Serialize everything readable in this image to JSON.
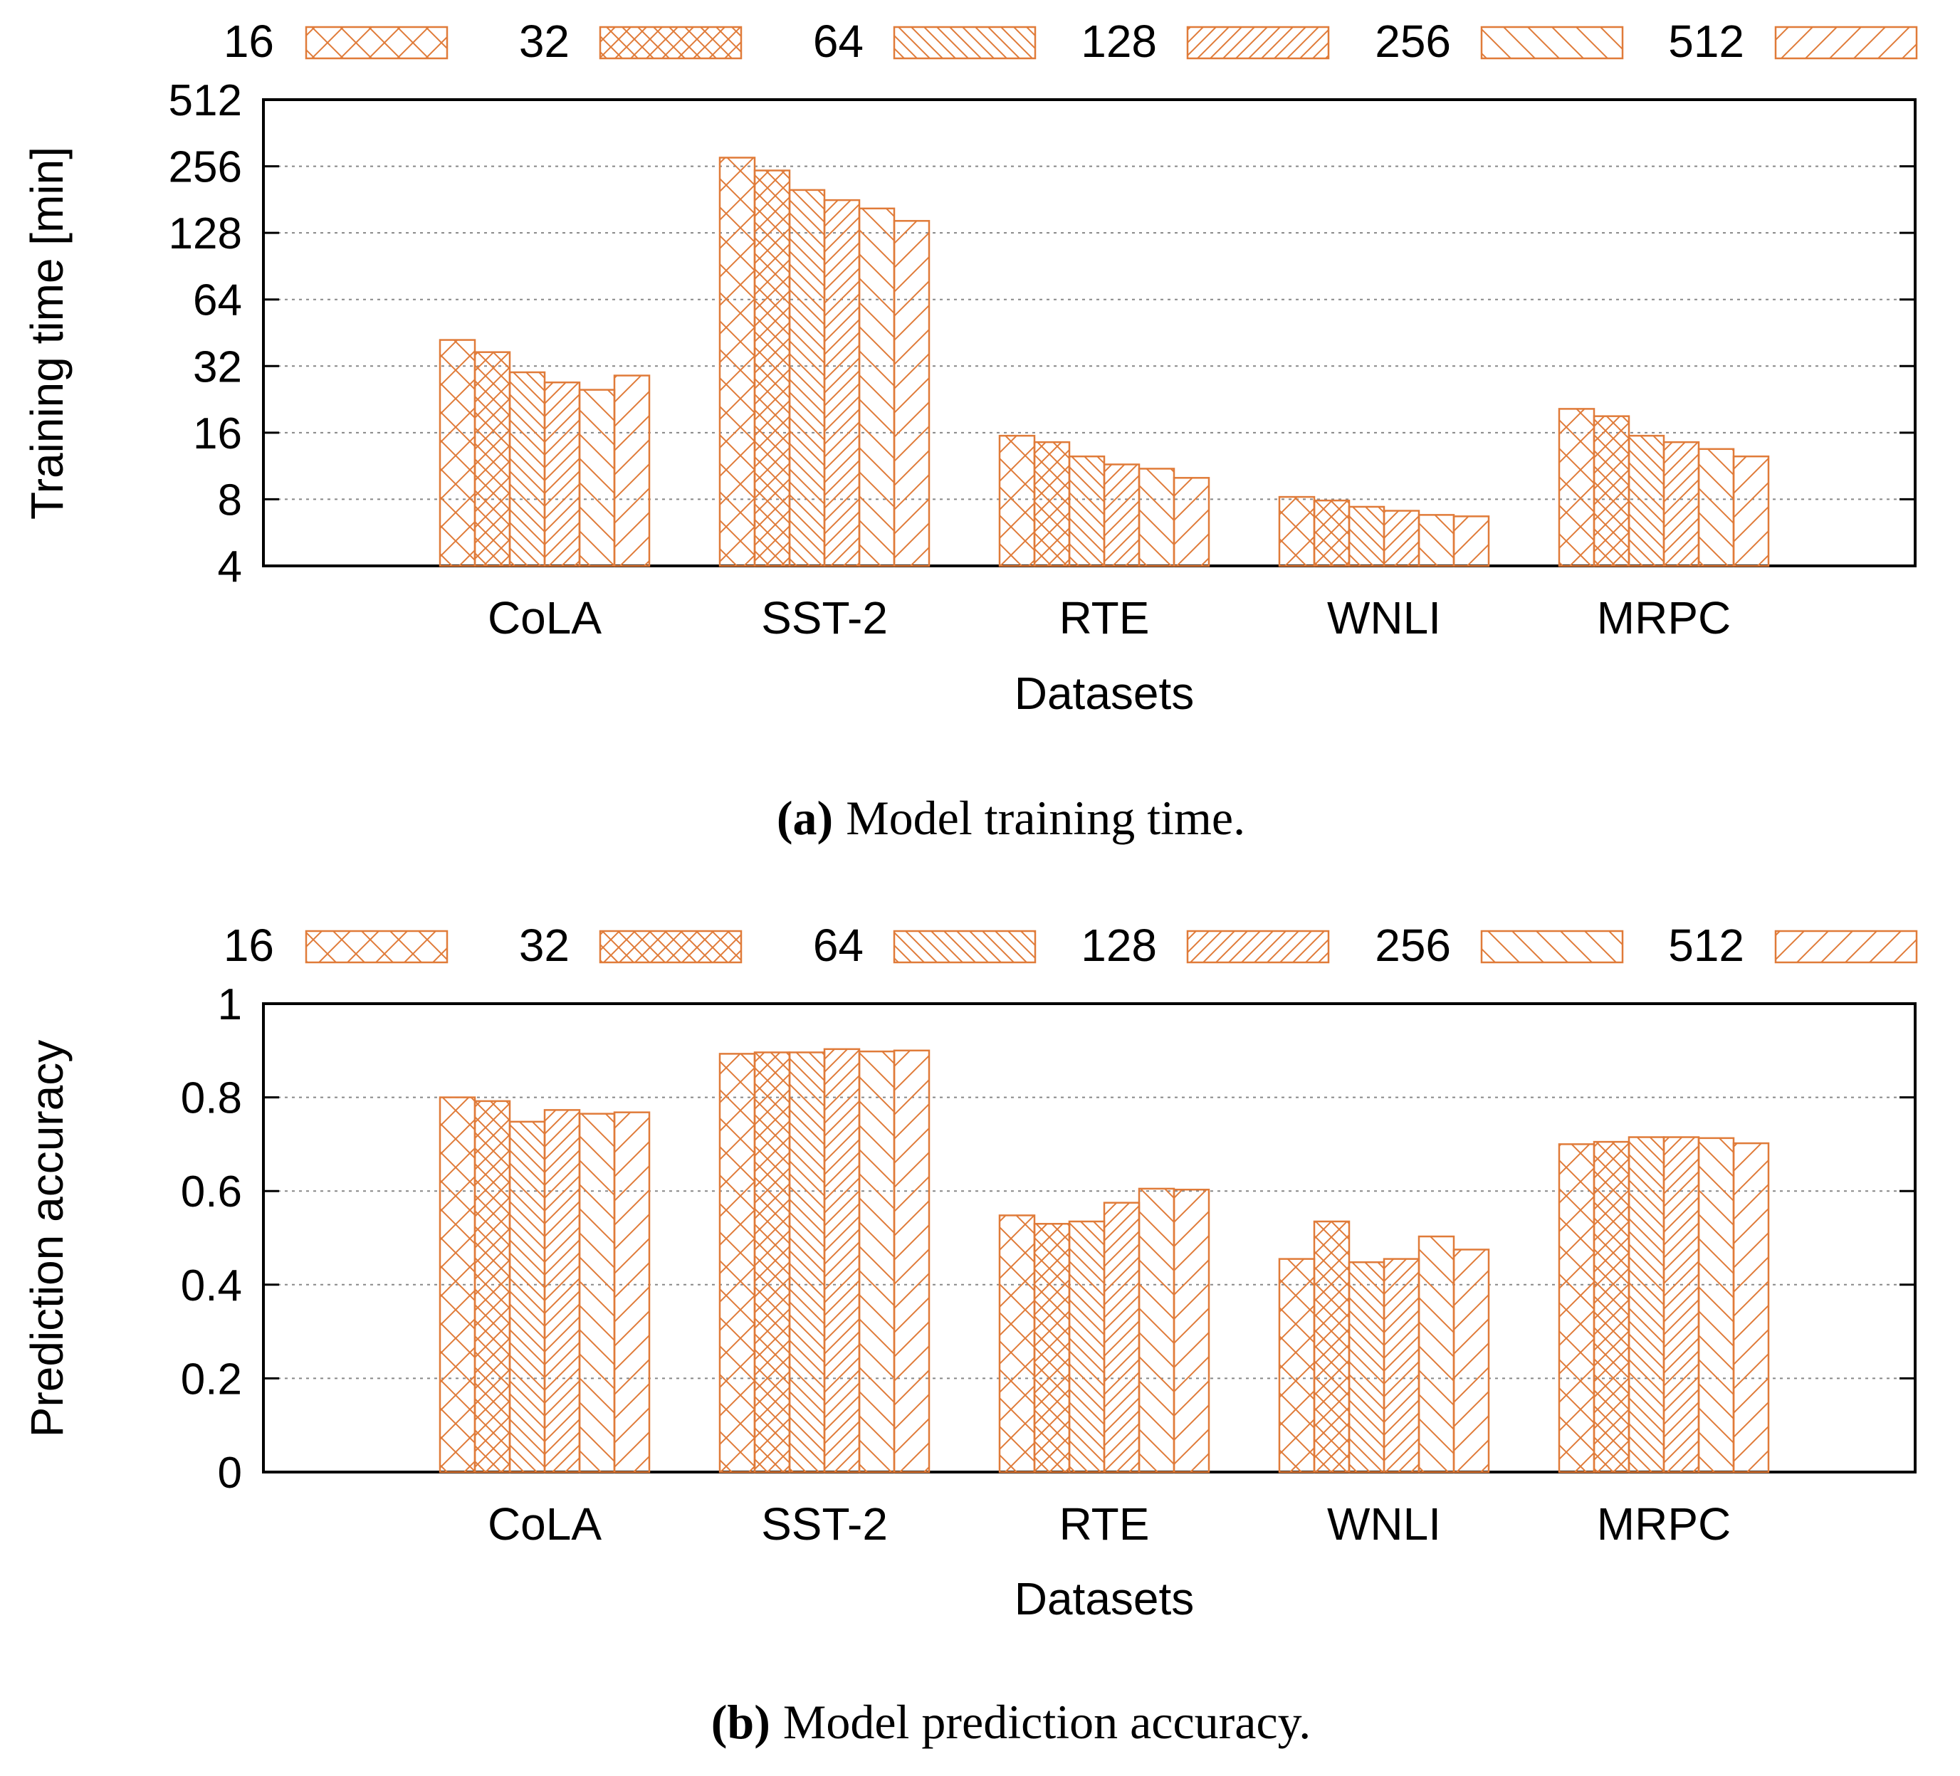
{
  "colors": {
    "bar": "#e07b39",
    "axis": "#000000",
    "grid": "#888888"
  },
  "chart_data": [
    {
      "type": "bar",
      "title": "",
      "caption_label": "(a)",
      "caption_text": "Model training time.",
      "xlabel": "Datasets",
      "ylabel": "Training time [min]",
      "yscale": "log2",
      "ylim": [
        4,
        512
      ],
      "yticks": [
        "4",
        "8",
        "16",
        "32",
        "64",
        "128",
        "256",
        "512"
      ],
      "grid": true,
      "legend_position": "top",
      "categories": [
        "CoLA",
        "SST-2",
        "RTE",
        "WNLI",
        "MRPC"
      ],
      "series": [
        {
          "name": "16",
          "pattern": "cross",
          "values": [
            42,
            280,
            15.5,
            8.2,
            20.5
          ]
        },
        {
          "name": "32",
          "pattern": "xhatch",
          "values": [
            37,
            245,
            14.5,
            7.9,
            19
          ]
        },
        {
          "name": "64",
          "pattern": "back",
          "values": [
            30,
            200,
            12.5,
            7.4,
            15.5
          ]
        },
        {
          "name": "128",
          "pattern": "fwd",
          "values": [
            27,
            180,
            11.5,
            7.1,
            14.5
          ]
        },
        {
          "name": "256",
          "pattern": "backwide",
          "values": [
            25,
            165,
            11,
            6.8,
            13.5
          ]
        },
        {
          "name": "512",
          "pattern": "fwdwide",
          "values": [
            29,
            145,
            10,
            6.7,
            12.5
          ]
        }
      ]
    },
    {
      "type": "bar",
      "title": "",
      "caption_label": "(b)",
      "caption_text": "Model prediction accuracy.",
      "xlabel": "Datasets",
      "ylabel": "Prediction accuracy",
      "yscale": "linear",
      "ylim": [
        0,
        1
      ],
      "yticks": [
        "0",
        "0.2",
        "0.4",
        "0.6",
        "0.8",
        "1"
      ],
      "grid": true,
      "legend_position": "top",
      "categories": [
        "CoLA",
        "SST-2",
        "RTE",
        "WNLI",
        "MRPC"
      ],
      "series": [
        {
          "name": "16",
          "pattern": "cross",
          "values": [
            0.8,
            0.893,
            0.548,
            0.455,
            0.7
          ]
        },
        {
          "name": "32",
          "pattern": "xhatch",
          "values": [
            0.792,
            0.896,
            0.53,
            0.535,
            0.705
          ]
        },
        {
          "name": "64",
          "pattern": "back",
          "values": [
            0.748,
            0.896,
            0.535,
            0.448,
            0.715
          ]
        },
        {
          "name": "128",
          "pattern": "fwd",
          "values": [
            0.773,
            0.903,
            0.575,
            0.455,
            0.715
          ]
        },
        {
          "name": "256",
          "pattern": "backwide",
          "values": [
            0.765,
            0.898,
            0.605,
            0.503,
            0.713
          ]
        },
        {
          "name": "512",
          "pattern": "fwdwide",
          "values": [
            0.768,
            0.9,
            0.603,
            0.475,
            0.702
          ]
        }
      ]
    }
  ]
}
